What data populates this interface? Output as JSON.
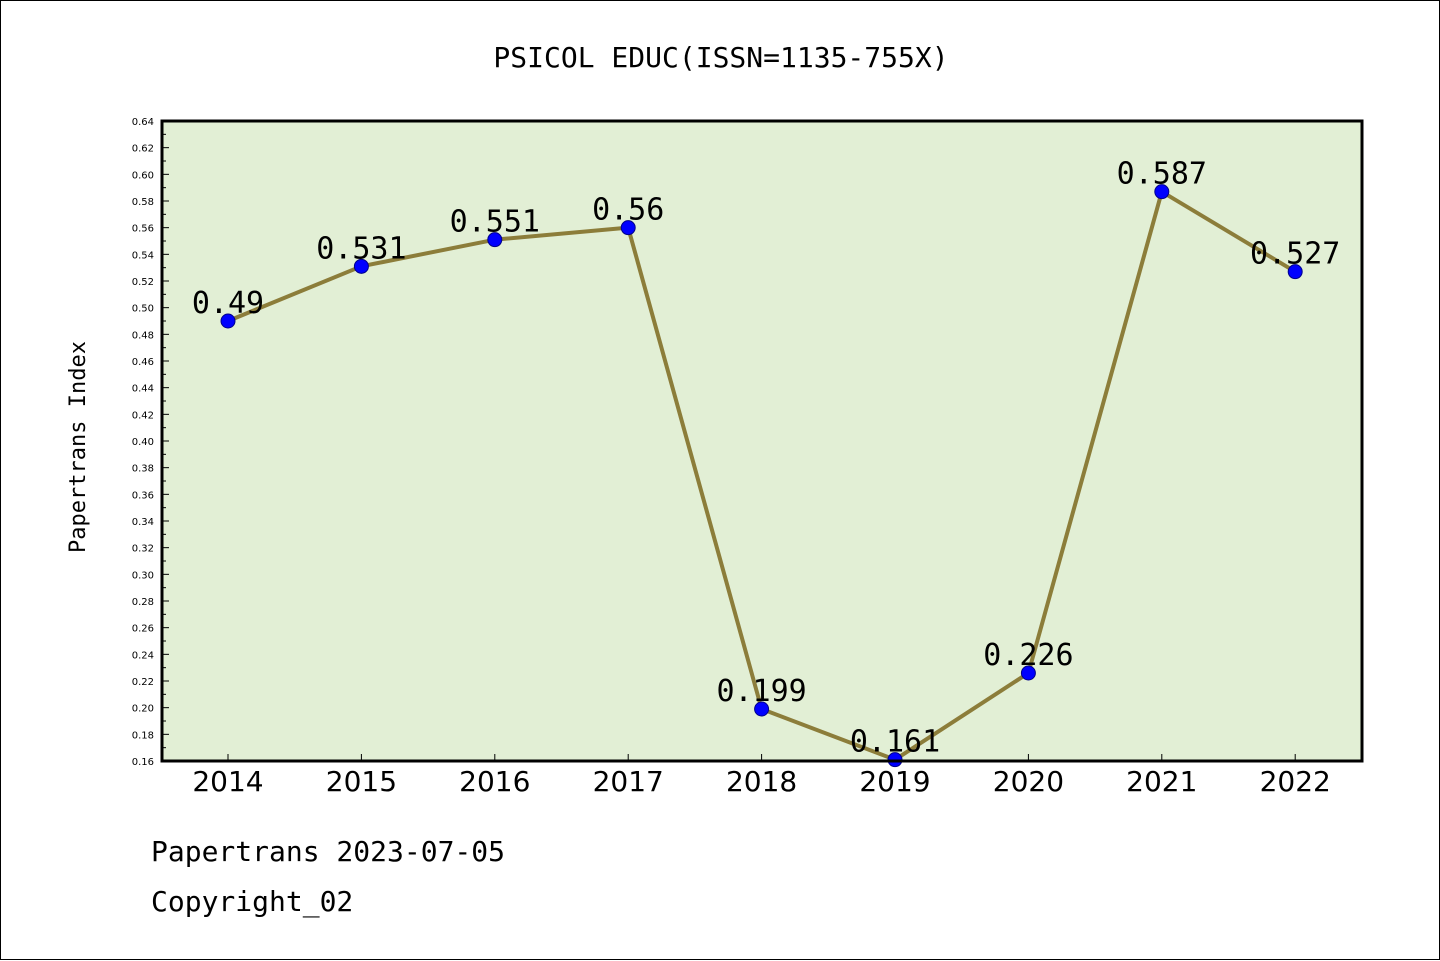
{
  "footer": {
    "line1": "Papertrans 2023-07-05",
    "line2": "Copyright_02"
  },
  "colors": {
    "plot_bg": "#e2efd5",
    "line": "#8c7d3a",
    "marker": "#0000ff"
  },
  "chart_data": {
    "type": "line",
    "title": "PSICOL EDUC(ISSN=1135-755X)",
    "xlabel": "",
    "ylabel": "Papertrans Index",
    "categories": [
      "2014",
      "2015",
      "2016",
      "2017",
      "2018",
      "2019",
      "2020",
      "2021",
      "2022"
    ],
    "series": [
      {
        "values": [
          0.49,
          0.531,
          0.551,
          0.56,
          0.199,
          0.161,
          0.226,
          0.587,
          0.527
        ],
        "labels": [
          "0.49",
          "0.531",
          "0.551",
          "0.56",
          "0.199",
          "0.161",
          "0.226",
          "0.587",
          "0.527"
        ]
      }
    ],
    "ylim": [
      0.16,
      0.64
    ],
    "yticks": [
      "0.16",
      "0.18",
      "0.20",
      "0.22",
      "0.24",
      "0.26",
      "0.28",
      "0.30",
      "0.32",
      "0.34",
      "0.36",
      "0.38",
      "0.40",
      "0.42",
      "0.44",
      "0.46",
      "0.48",
      "0.50",
      "0.52",
      "0.54",
      "0.56",
      "0.58",
      "0.60",
      "0.62",
      "0.64"
    ],
    "grid": false,
    "legend": "none"
  }
}
